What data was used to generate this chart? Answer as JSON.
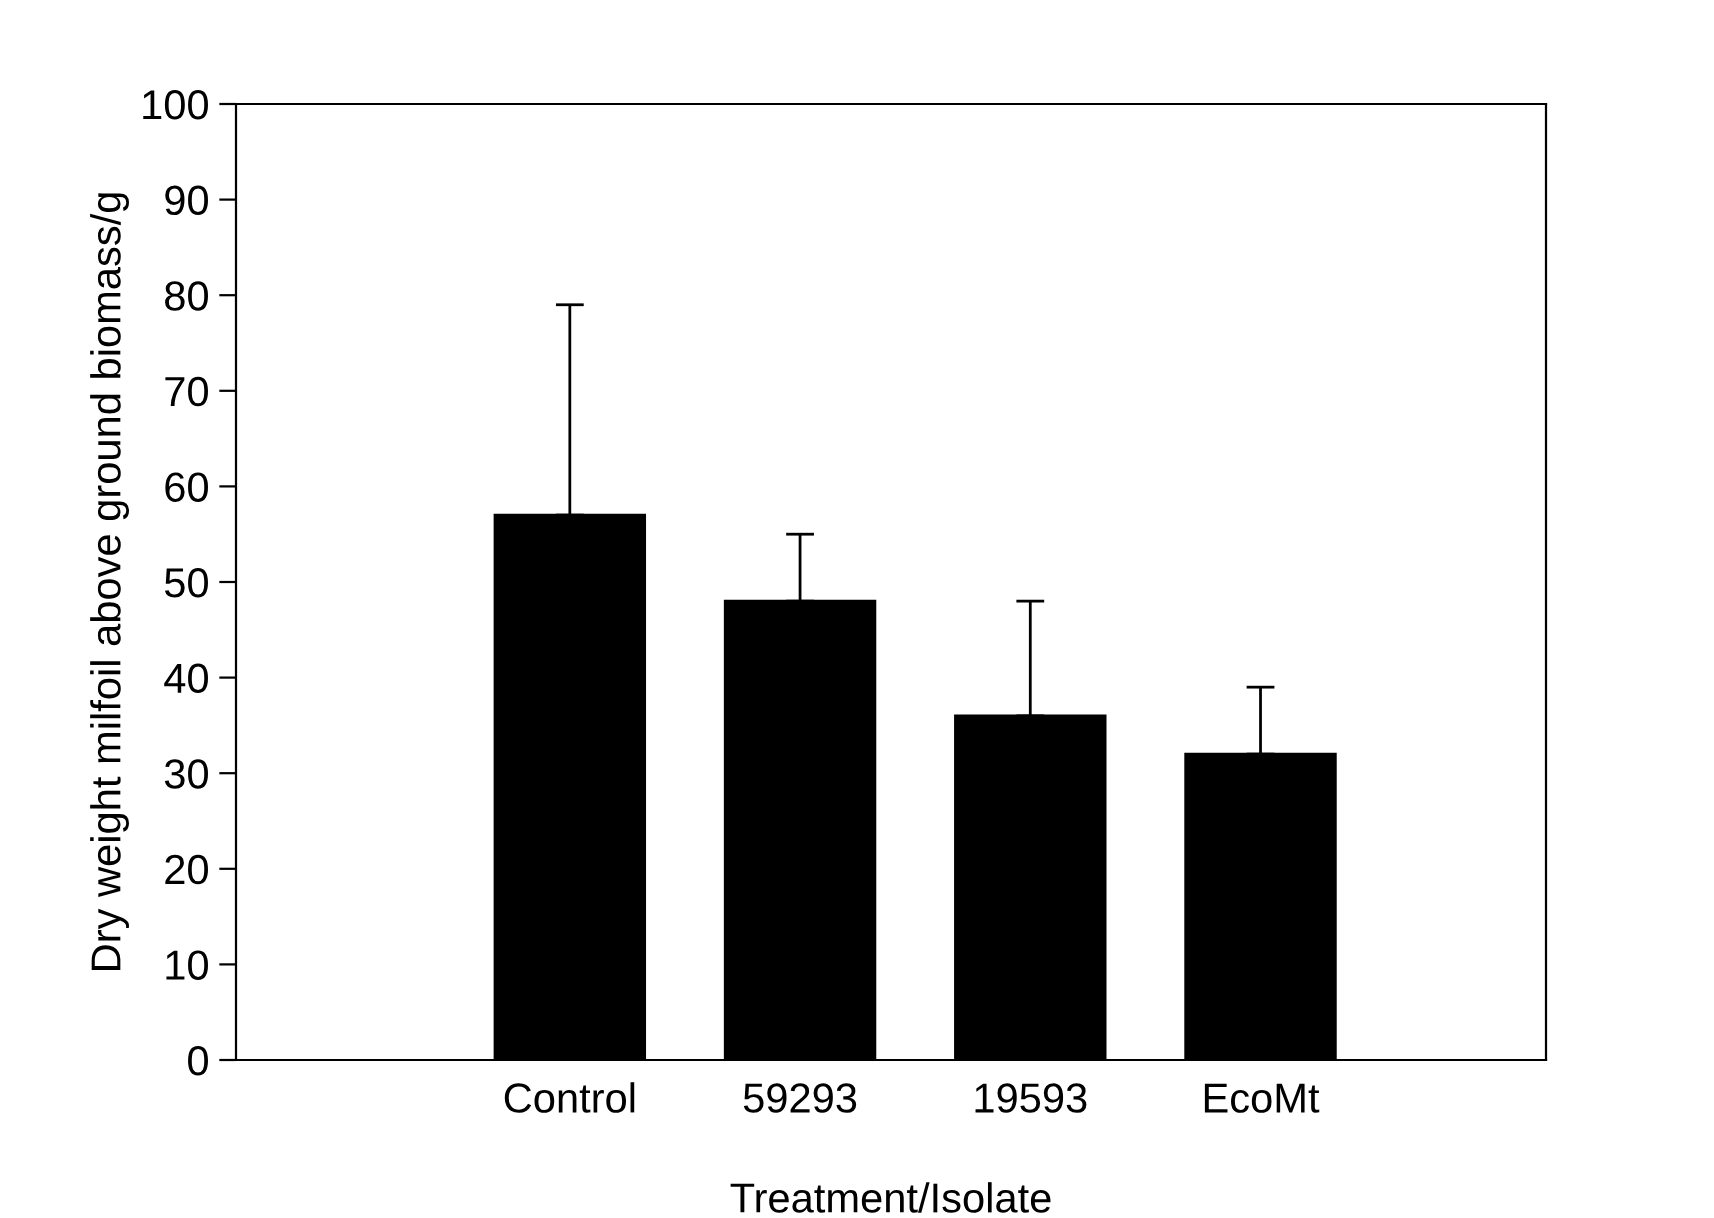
{
  "chart_data": {
    "type": "bar",
    "xlabel": "Treatment/Isolate",
    "ylabel": "Dry weight milfoil above ground biomass/g",
    "categories": [
      "Control",
      "59293",
      "19593",
      "EcoMt"
    ],
    "values": [
      57,
      48,
      36,
      32
    ],
    "errors": [
      [
        57,
        79
      ],
      [
        48,
        55
      ],
      [
        36,
        48
      ],
      [
        32,
        39
      ]
    ],
    "color": "#000000",
    "ylim": [
      0,
      100
    ],
    "yticks": [
      0,
      10,
      20,
      30,
      40,
      50,
      60,
      70,
      80,
      90,
      100
    ],
    "grid": false
  }
}
